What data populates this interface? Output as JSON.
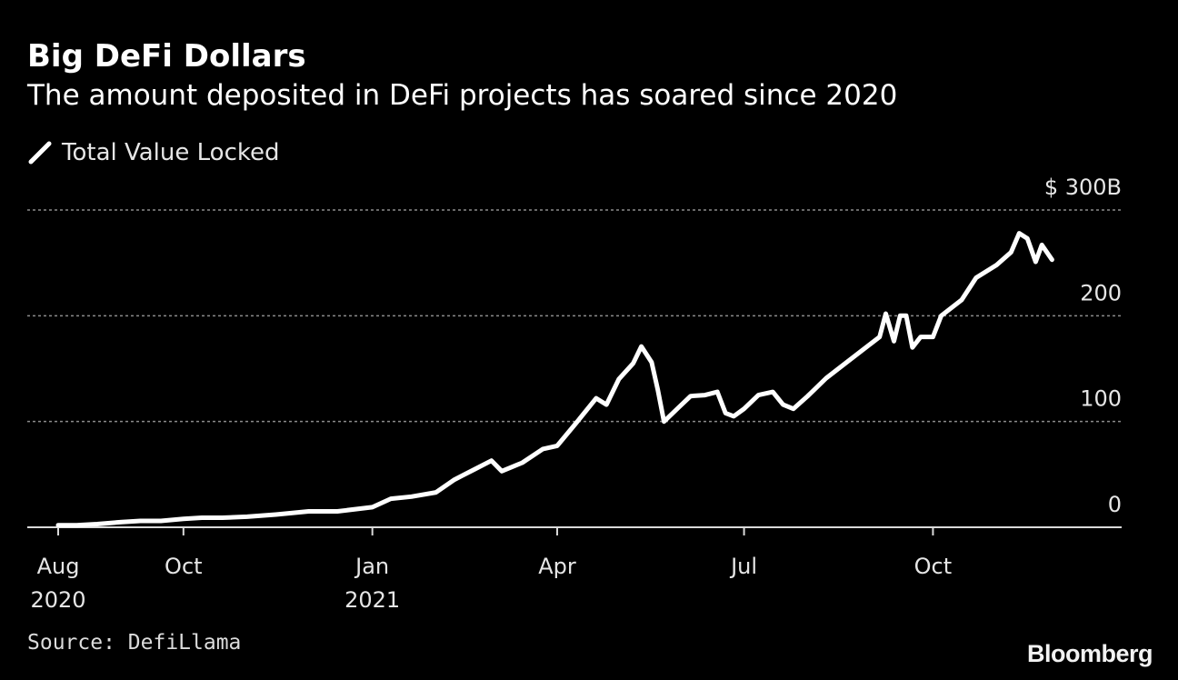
{
  "header": {
    "title": "Big DeFi Dollars",
    "subtitle": "The amount deposited in DeFi projects has soared since 2020"
  },
  "legend": {
    "label": "Total Value Locked",
    "color": "#ffffff"
  },
  "footer": {
    "source": "Source: DefiLlama",
    "brand": "Bloomberg"
  },
  "chart_data": {
    "type": "line",
    "title": "Big DeFi Dollars",
    "subtitle": "The amount deposited in DeFi projects has soared since 2020",
    "xlabel": "",
    "ylabel": "",
    "x_range": [
      "2020-08-01",
      "2021-12-31"
    ],
    "y_range": [
      0,
      300
    ],
    "grid": true,
    "legend_position": "top-left",
    "background": "#000000",
    "line_color": "#ffffff",
    "y_ticks": [
      {
        "value": 0,
        "label": "0"
      },
      {
        "value": 100,
        "label": "100"
      },
      {
        "value": 200,
        "label": "200"
      },
      {
        "value": 300,
        "label": "$ 300B"
      }
    ],
    "x_ticks": [
      {
        "date": "2020-08-01",
        "label": "Aug",
        "sublabel": "2020"
      },
      {
        "date": "2020-10-01",
        "label": "Oct",
        "sublabel": ""
      },
      {
        "date": "2021-01-01",
        "label": "Jan",
        "sublabel": "2021"
      },
      {
        "date": "2021-04-01",
        "label": "Apr",
        "sublabel": ""
      },
      {
        "date": "2021-07-01",
        "label": "Jul",
        "sublabel": ""
      },
      {
        "date": "2021-10-01",
        "label": "Oct",
        "sublabel": ""
      }
    ],
    "series": [
      {
        "name": "Total Value Locked",
        "points": [
          [
            "2020-08-01",
            2
          ],
          [
            "2020-08-10",
            2
          ],
          [
            "2020-08-20",
            3
          ],
          [
            "2020-09-01",
            5
          ],
          [
            "2020-09-10",
            6
          ],
          [
            "2020-09-20",
            6
          ],
          [
            "2020-10-01",
            8
          ],
          [
            "2020-10-10",
            9
          ],
          [
            "2020-10-20",
            9
          ],
          [
            "2020-11-01",
            10
          ],
          [
            "2020-11-15",
            12
          ],
          [
            "2020-12-01",
            15
          ],
          [
            "2020-12-15",
            15
          ],
          [
            "2021-01-01",
            19
          ],
          [
            "2021-01-10",
            27
          ],
          [
            "2021-01-20",
            29
          ],
          [
            "2021-02-01",
            33
          ],
          [
            "2021-02-10",
            45
          ],
          [
            "2021-02-20",
            55
          ],
          [
            "2021-02-28",
            63
          ],
          [
            "2021-03-05",
            53
          ],
          [
            "2021-03-15",
            61
          ],
          [
            "2021-03-25",
            74
          ],
          [
            "2021-04-01",
            77
          ],
          [
            "2021-04-10",
            98
          ],
          [
            "2021-04-20",
            122
          ],
          [
            "2021-04-25",
            116
          ],
          [
            "2021-05-01",
            140
          ],
          [
            "2021-05-08",
            155
          ],
          [
            "2021-05-12",
            171
          ],
          [
            "2021-05-17",
            156
          ],
          [
            "2021-05-20",
            130
          ],
          [
            "2021-05-23",
            100
          ],
          [
            "2021-05-30",
            113
          ],
          [
            "2021-06-05",
            124
          ],
          [
            "2021-06-12",
            125
          ],
          [
            "2021-06-18",
            128
          ],
          [
            "2021-06-22",
            108
          ],
          [
            "2021-06-26",
            105
          ],
          [
            "2021-07-01",
            112
          ],
          [
            "2021-07-08",
            125
          ],
          [
            "2021-07-15",
            128
          ],
          [
            "2021-07-20",
            116
          ],
          [
            "2021-07-25",
            112
          ],
          [
            "2021-08-01",
            124
          ],
          [
            "2021-08-10",
            141
          ],
          [
            "2021-08-20",
            156
          ],
          [
            "2021-09-01",
            174
          ],
          [
            "2021-09-05",
            180
          ],
          [
            "2021-09-08",
            202
          ],
          [
            "2021-09-12",
            176
          ],
          [
            "2021-09-15",
            200
          ],
          [
            "2021-09-18",
            200
          ],
          [
            "2021-09-21",
            170
          ],
          [
            "2021-09-25",
            180
          ],
          [
            "2021-10-01",
            180
          ],
          [
            "2021-10-05",
            200
          ],
          [
            "2021-10-15",
            215
          ],
          [
            "2021-10-22",
            236
          ],
          [
            "2021-11-01",
            248
          ],
          [
            "2021-11-08",
            260
          ],
          [
            "2021-11-12",
            278
          ],
          [
            "2021-11-16",
            273
          ],
          [
            "2021-11-20",
            251
          ],
          [
            "2021-11-23",
            267
          ],
          [
            "2021-11-28",
            253
          ]
        ]
      }
    ]
  }
}
